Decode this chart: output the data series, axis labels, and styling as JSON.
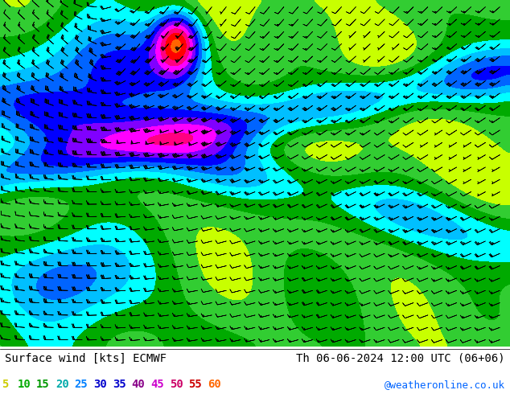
{
  "title_left": "Surface wind [kts] ECMWF",
  "title_right": "Th 06-06-2024 12:00 UTC (06+06)",
  "credit": "@weatheronline.co.uk",
  "legend_values": [
    5,
    10,
    15,
    20,
    25,
    30,
    35,
    40,
    45,
    50,
    55,
    60
  ],
  "legend_colors": [
    "#c8ff00",
    "#00e000",
    "#00c800",
    "#00ffff",
    "#00c8ff",
    "#0096ff",
    "#0000ff",
    "#9600ff",
    "#ff00ff",
    "#ff0096",
    "#ff0000",
    "#ff6400"
  ],
  "colorbar_levels": [
    0,
    5,
    10,
    15,
    20,
    25,
    30,
    35,
    40,
    45,
    50,
    55,
    60
  ],
  "colorbar_colors": [
    "#aaffaa",
    "#c8ff00",
    "#00e000",
    "#00c800",
    "#00ffff",
    "#00c8ff",
    "#0096ff",
    "#0000ff",
    "#9600ff",
    "#ff00ff",
    "#ff0096",
    "#ff0000"
  ],
  "bg_color": "#ffffff",
  "map_bg": "#88cc44",
  "label_fontsize": 10,
  "credit_color": "#0064ff",
  "legend_color_values": [
    "#c8ff00",
    "#00c800",
    "#00e0a0",
    "#00c8ff",
    "#0096ff",
    "#0064ff",
    "#0000ff",
    "#9600c8",
    "#ff00e0",
    "#ff0064",
    "#ff0000",
    "#ff6400"
  ]
}
